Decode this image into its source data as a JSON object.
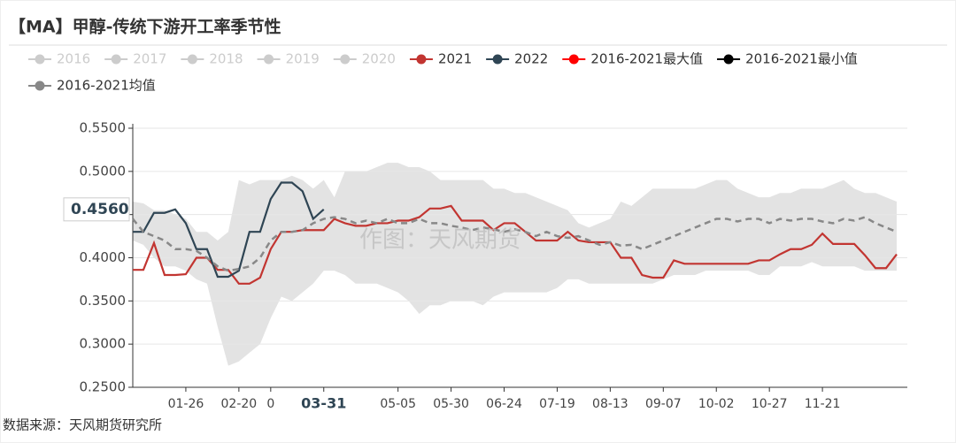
{
  "chart_data": {
    "type": "line",
    "title": "【MA】甲醇-传统下游开工率季节性",
    "watermark": "作图：天风期货",
    "source": "数据来源：天风期货研究所",
    "categories": [
      null,
      null,
      null,
      null,
      null,
      "01-26",
      null,
      null,
      null,
      null,
      "02-20",
      null,
      null,
      "0",
      null,
      null,
      null,
      null,
      "03-31",
      null,
      null,
      null,
      null,
      null,
      null,
      "05-05",
      null,
      null,
      null,
      null,
      "05-30",
      null,
      null,
      null,
      null,
      "06-24",
      null,
      null,
      null,
      null,
      "07-19",
      null,
      null,
      null,
      null,
      "08-13",
      null,
      null,
      null,
      null,
      "09-07",
      null,
      null,
      null,
      null,
      "10-02",
      null,
      null,
      null,
      null,
      "10-27",
      null,
      null,
      null,
      null,
      "11-21",
      null,
      null,
      null,
      null,
      null,
      null,
      null
    ],
    "ylim": [
      0.25,
      0.55
    ],
    "yticks": [
      {
        "value": 0.25,
        "label": "0.2500"
      },
      {
        "value": 0.3,
        "label": "0.3000"
      },
      {
        "value": 0.35,
        "label": "0.3500"
      },
      {
        "value": 0.4,
        "label": "0.4000"
      },
      {
        "value": 0.45,
        "label": "0.4500"
      },
      {
        "value": 0.5,
        "label": "0.5000"
      },
      {
        "value": 0.55,
        "label": "0.5500"
      }
    ],
    "grid": true,
    "pointer": {
      "x": "03-31",
      "y": {
        "value": 0.456,
        "label": "0.4560"
      }
    },
    "series": [
      {
        "name": "2016",
        "color": "#cccccc",
        "hidden": true
      },
      {
        "name": "2017",
        "color": "#cccccc",
        "hidden": true
      },
      {
        "name": "2018",
        "color": "#cccccc",
        "hidden": true
      },
      {
        "name": "2019",
        "color": "#cccccc",
        "hidden": true
      },
      {
        "name": "2020",
        "color": "#cccccc",
        "hidden": true
      },
      {
        "name": "2021",
        "color": "#c23531",
        "values": [
          0.386,
          0.386,
          0.417,
          0.38,
          0.38,
          0.381,
          0.4,
          0.4,
          0.386,
          0.386,
          0.37,
          0.37,
          0.377,
          0.41,
          0.43,
          0.43,
          0.432,
          0.432,
          0.432,
          0.445,
          0.44,
          0.437,
          0.437,
          0.44,
          0.44,
          0.443,
          0.443,
          0.447,
          0.457,
          0.457,
          0.46,
          0.443,
          0.443,
          0.443,
          0.432,
          0.44,
          0.44,
          0.43,
          0.42,
          0.42,
          0.42,
          0.43,
          0.42,
          0.418,
          0.418,
          0.418,
          0.4,
          0.4,
          0.38,
          0.377,
          0.377,
          0.397,
          0.393,
          0.393,
          0.393,
          0.393,
          0.393,
          0.393,
          0.393,
          0.397,
          0.397,
          0.404,
          0.41,
          0.41,
          0.415,
          0.428,
          0.416,
          0.416,
          0.416,
          0.403,
          0.388,
          0.388,
          0.404
        ]
      },
      {
        "name": "2022",
        "color": "#2f4554",
        "values": [
          0.43,
          0.43,
          0.452,
          0.452,
          0.456,
          0.44,
          0.41,
          0.41,
          0.378,
          0.378,
          0.385,
          0.43,
          0.43,
          0.468,
          0.487,
          0.487,
          0.477,
          0.445,
          0.456,
          null,
          null,
          null,
          null,
          null,
          null,
          null,
          null,
          null,
          null,
          null,
          null,
          null,
          null,
          null,
          null,
          null,
          null,
          null,
          null,
          null,
          null,
          null,
          null,
          null,
          null,
          null,
          null,
          null,
          null,
          null,
          null,
          null,
          null,
          null,
          null,
          null,
          null,
          null,
          null,
          null,
          null,
          null,
          null,
          null,
          null,
          null,
          null,
          null,
          null,
          null,
          null,
          null,
          null
        ]
      },
      {
        "name": "2016-2021最大值",
        "color": "#ff0000",
        "band": "upper",
        "values": [
          0.465,
          0.463,
          0.455,
          0.455,
          0.45,
          0.445,
          0.43,
          0.43,
          0.42,
          0.43,
          0.49,
          0.485,
          0.49,
          0.49,
          0.49,
          0.495,
          0.49,
          0.48,
          0.49,
          0.47,
          0.5,
          0.5,
          0.5,
          0.505,
          0.51,
          0.51,
          0.505,
          0.505,
          0.5,
          0.49,
          0.49,
          0.49,
          0.49,
          0.49,
          0.48,
          0.48,
          0.475,
          0.475,
          0.47,
          0.465,
          0.46,
          0.455,
          0.44,
          0.435,
          0.44,
          0.445,
          0.465,
          0.46,
          0.47,
          0.48,
          0.48,
          0.48,
          0.48,
          0.48,
          0.485,
          0.49,
          0.49,
          0.48,
          0.475,
          0.47,
          0.47,
          0.475,
          0.475,
          0.48,
          0.48,
          0.48,
          0.485,
          0.49,
          0.48,
          0.475,
          0.475,
          0.47,
          0.465
        ]
      },
      {
        "name": "2016-2021最小值",
        "color": "#000000",
        "band": "lower",
        "values": [
          0.42,
          0.415,
          0.4,
          0.39,
          0.39,
          0.385,
          0.375,
          0.37,
          0.32,
          0.275,
          0.28,
          0.29,
          0.3,
          0.33,
          0.355,
          0.35,
          0.36,
          0.37,
          0.385,
          0.385,
          0.38,
          0.37,
          0.37,
          0.37,
          0.365,
          0.36,
          0.35,
          0.335,
          0.345,
          0.345,
          0.35,
          0.35,
          0.35,
          0.345,
          0.355,
          0.36,
          0.36,
          0.36,
          0.36,
          0.36,
          0.365,
          0.375,
          0.375,
          0.37,
          0.37,
          0.37,
          0.37,
          0.37,
          0.37,
          0.37,
          0.375,
          0.38,
          0.38,
          0.38,
          0.385,
          0.385,
          0.385,
          0.385,
          0.385,
          0.38,
          0.38,
          0.39,
          0.39,
          0.39,
          0.395,
          0.39,
          0.39,
          0.39,
          0.39,
          0.385,
          0.385,
          0.385,
          0.385
        ]
      },
      {
        "name": "2016-2021均值",
        "color": "#888888",
        "dashed": true,
        "values": [
          0.445,
          0.43,
          0.425,
          0.42,
          0.41,
          0.41,
          0.408,
          0.4,
          0.39,
          0.385,
          0.387,
          0.39,
          0.4,
          0.42,
          0.43,
          0.43,
          0.432,
          0.44,
          0.445,
          0.447,
          0.445,
          0.44,
          0.443,
          0.44,
          0.445,
          0.44,
          0.44,
          0.445,
          0.44,
          0.44,
          0.437,
          0.435,
          0.432,
          0.435,
          0.433,
          0.43,
          0.433,
          0.43,
          0.425,
          0.43,
          0.425,
          0.423,
          0.425,
          0.42,
          0.415,
          0.418,
          0.414,
          0.415,
          0.41,
          0.415,
          0.42,
          0.425,
          0.43,
          0.435,
          0.44,
          0.445,
          0.445,
          0.442,
          0.445,
          0.445,
          0.44,
          0.445,
          0.443,
          0.445,
          0.445,
          0.442,
          0.44,
          0.445,
          0.443,
          0.447,
          0.44,
          0.435,
          0.43
        ]
      }
    ]
  }
}
